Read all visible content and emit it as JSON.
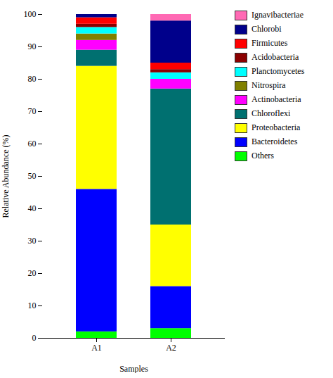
{
  "chart_data": {
    "type": "bar",
    "stacked": true,
    "categories": [
      "A1",
      "A2"
    ],
    "xlabel": "Samples",
    "ylabel": "Relative Abundance (%)",
    "ylim": [
      0,
      100
    ],
    "yticks": [
      0,
      10,
      20,
      30,
      40,
      50,
      60,
      70,
      80,
      90,
      100
    ],
    "grid": false,
    "legend": "right",
    "series": [
      {
        "name": "Others",
        "color": "#00FF00",
        "values": [
          2.0,
          3.0
        ]
      },
      {
        "name": "Bacteroidetes",
        "color": "#0000FF",
        "values": [
          44.0,
          13.0
        ]
      },
      {
        "name": "Proteobacteria",
        "color": "#FFFF00",
        "values": [
          38.0,
          19.0
        ]
      },
      {
        "name": "Chloroflexi",
        "color": "#007070",
        "values": [
          5.0,
          42.0
        ]
      },
      {
        "name": "Actinobacteria",
        "color": "#FF00FF",
        "values": [
          3.0,
          3.0
        ]
      },
      {
        "name": "Nitrospira",
        "color": "#808000",
        "values": [
          2.0,
          0.0
        ]
      },
      {
        "name": "Planctomycetes",
        "color": "#00FFFF",
        "values": [
          2.0,
          2.0
        ]
      },
      {
        "name": "Acidobacteria",
        "color": "#8B0000",
        "values": [
          1.0,
          1.0
        ]
      },
      {
        "name": "Firmicutes",
        "color": "#FF0000",
        "values": [
          2.0,
          2.0
        ]
      },
      {
        "name": "Chlorobi",
        "color": "#00008B",
        "values": [
          1.0,
          13.0
        ]
      },
      {
        "name": "Ignavibacteriae",
        "color": "#FF69B4",
        "values": [
          0.0,
          2.0
        ]
      }
    ]
  }
}
